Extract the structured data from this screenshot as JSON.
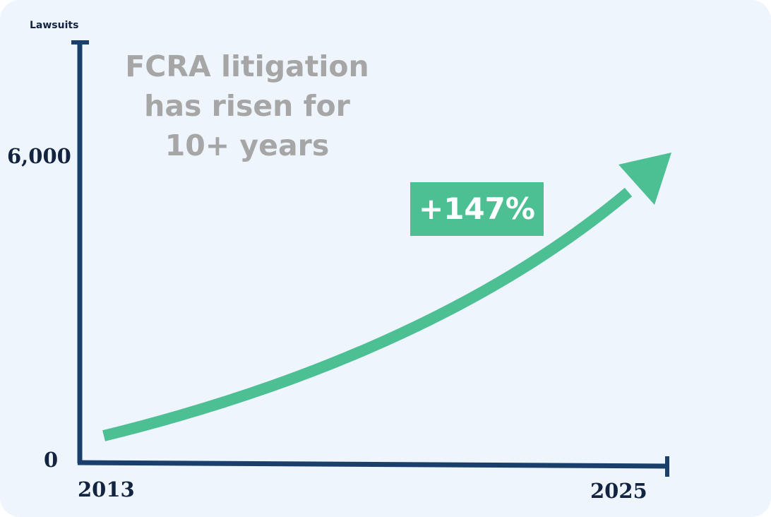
{
  "chart_data": {
    "type": "line",
    "title": "FCRA litigation has risen for 10+ years",
    "title_lines": [
      "FCRA litigation",
      "has risen for",
      "10+ years"
    ],
    "ylabel": "Lawsuits",
    "xlabel": "",
    "x_ticks": [
      "2013",
      "2025"
    ],
    "y_ticks": [
      "0",
      "6,000"
    ],
    "xlim": [
      2013,
      2025
    ],
    "ylim": [
      0,
      6000
    ],
    "annotation": "+147%",
    "trend": "increasing, accelerating curve drawn as an arrow",
    "grid": false,
    "legend": "none",
    "colors": {
      "axis": "#1b3f6b",
      "arrow": "#4cbf93",
      "title": "#a6a6a6",
      "background": "#eef5fc"
    }
  }
}
